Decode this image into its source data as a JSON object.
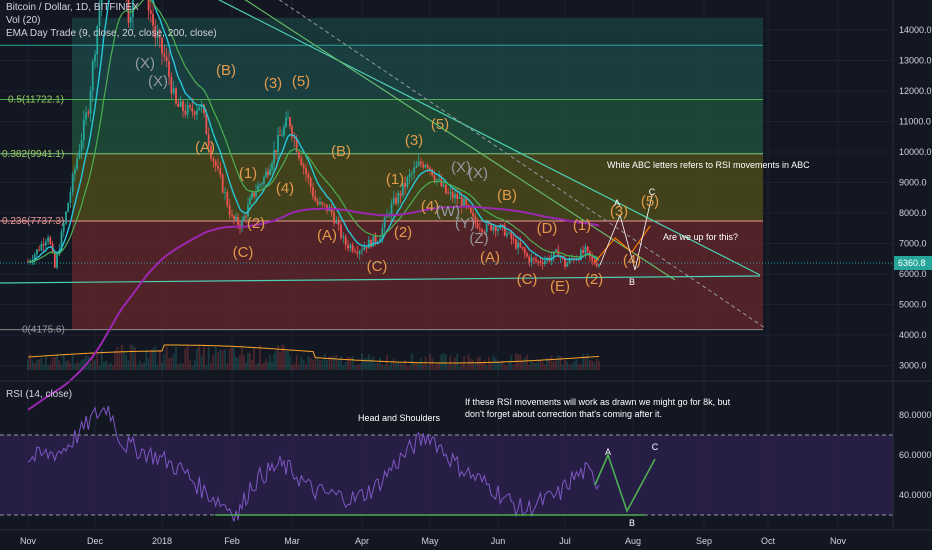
{
  "header": {
    "title": "Bitcoin / Dollar, 1D, BITFINEX",
    "vol": "Vol (20)",
    "ema": "EMA Day Trade (9, close, 20, close, 200, close)"
  },
  "rsi_title": "RSI (14, close)",
  "price_scale": [
    "14000.0",
    "13000.0",
    "12000.0",
    "11000.0",
    "10000.0",
    "9000.0",
    "8000.0",
    "7000.0",
    "6000.0",
    "5000.0",
    "4000.0",
    "3000.0"
  ],
  "last_price": "6360.8",
  "rsi_scale": [
    "80.0000",
    "60.0000",
    "40.0000"
  ],
  "x_labels": [
    "Nov",
    "Dec",
    "2018",
    "Feb",
    "Mar",
    "Apr",
    "May",
    "Jun",
    "Jul",
    "Aug",
    "Sep",
    "Oct",
    "Nov"
  ],
  "fib_levels": [
    {
      "label": "0.5(11722.1)",
      "price": 11722.1
    },
    {
      "label": "0.382(9941.1)",
      "price": 9941.1
    },
    {
      "label": "0.236(7737.3)",
      "price": 7737.3
    },
    {
      "label": "0(4175.6)",
      "price": 4175.6
    }
  ],
  "annotations": {
    "white_abc_note": "White ABC letters refers to RSI movements in ABC",
    "question": "Are we up for this?",
    "rsi_note_line1": "If these RSI movements will work as drawn we might go for 8k, but",
    "rsi_note_line2": "don't forget about correction that's coming after it.",
    "head_shoulders": "Head and Shoulders"
  },
  "wave_labels": [
    {
      "text": "(X)",
      "color": "#9598a1"
    },
    {
      "text": "(X)",
      "color": "#9598a1"
    },
    {
      "text": "(B)",
      "color": "#e39a4a"
    },
    {
      "text": "(3)",
      "color": "#e39a4a"
    },
    {
      "text": "(5)",
      "color": "#e39a4a"
    },
    {
      "text": "(A)",
      "color": "#e39a4a"
    },
    {
      "text": "(1)",
      "color": "#e39a4a"
    },
    {
      "text": "(4)",
      "color": "#e39a4a"
    },
    {
      "text": "(2)",
      "color": "#e39a4a"
    },
    {
      "text": "(C)",
      "color": "#e39a4a"
    },
    {
      "text": "(B)",
      "color": "#e39a4a"
    },
    {
      "text": "(A)",
      "color": "#e39a4a"
    },
    {
      "text": "(C)",
      "color": "#e39a4a"
    },
    {
      "text": "(2)",
      "color": "#e39a4a"
    },
    {
      "text": "(1)",
      "color": "#e39a4a"
    },
    {
      "text": "(3)",
      "color": "#e39a4a"
    },
    {
      "text": "(5)",
      "color": "#e39a4a"
    },
    {
      "text": "(4)",
      "color": "#e39a4a"
    },
    {
      "text": "(W)",
      "color": "#9598a1"
    },
    {
      "text": "(X)",
      "color": "#9598a1"
    },
    {
      "text": "(X)",
      "color": "#9598a1"
    },
    {
      "text": "(Y)",
      "color": "#9598a1"
    },
    {
      "text": "(Z)",
      "color": "#9598a1"
    },
    {
      "text": "(B)",
      "color": "#e39a4a"
    },
    {
      "text": "(A)",
      "color": "#e39a4a"
    },
    {
      "text": "(D)",
      "color": "#e39a4a"
    },
    {
      "text": "(C)",
      "color": "#e39a4a"
    },
    {
      "text": "(E)",
      "color": "#e39a4a"
    },
    {
      "text": "(1)",
      "color": "#e39a4a"
    },
    {
      "text": "(2)",
      "color": "#e39a4a"
    },
    {
      "text": "(3)",
      "color": "#e39a4a"
    },
    {
      "text": "(4)",
      "color": "#e39a4a"
    },
    {
      "text": "(5)",
      "color": "#e39a4a"
    }
  ],
  "abc_price": [
    "A",
    "B",
    "C"
  ],
  "abc_rsi": [
    "A",
    "B",
    "C"
  ],
  "colors": {
    "background": "#131722",
    "grid": "#1e2230",
    "text": "#d1d4dc",
    "bull": "#26a69a",
    "bear": "#ef5350",
    "ema9": "#26c6da",
    "ema20": "#4caf50",
    "ema200": "#9c27b0",
    "fib_red": "#5d2428",
    "fib_yellow": "#4a4a1a",
    "fib_green1": "#2a4a2a",
    "fib_green2": "#1e4d3a",
    "fib_teal": "#1c4545",
    "rsi_line": "#7e57c2",
    "rsi_band": "#2a1f4a",
    "wave_orange": "#e39a4a",
    "abc_green": "#4caf50"
  },
  "chart_data": {
    "type": "line",
    "title": "Bitcoin / Dollar, 1D, BITFINEX",
    "x": [
      "Nov",
      "Dec",
      "2018",
      "Feb",
      "Mar",
      "Apr",
      "May",
      "Jun",
      "Jul",
      "Aug"
    ],
    "series": [
      {
        "name": "price",
        "values": [
          6600,
          11000,
          14800,
          8500,
          11000,
          7000,
          9500,
          6900,
          6300,
          6360
        ]
      },
      {
        "name": "RSI (14, close)",
        "values": [
          58,
          80,
          66,
          35,
          52,
          38,
          70,
          32,
          42,
          null
        ]
      }
    ],
    "ylim": [
      2700,
      15000
    ],
    "rsi_levels": [
      70,
      30
    ],
    "fib_levels": [
      11722.1,
      9941.1,
      7737.3,
      4175.6
    ],
    "last_price": 6360.8,
    "grid": true
  }
}
